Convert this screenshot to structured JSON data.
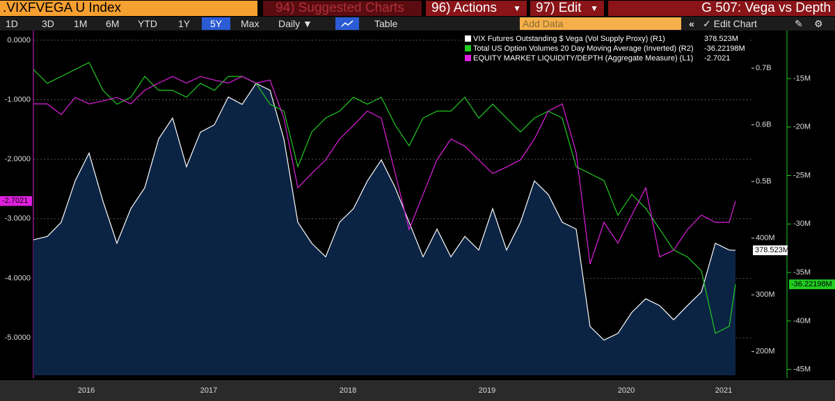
{
  "header": {
    "security": ".VIXFVEGA U Index",
    "suggested": "94) Suggested Charts",
    "actions": "96) Actions",
    "edit": "97) Edit",
    "chart_name": "G 507: Vega vs Depth"
  },
  "toolbar": {
    "ranges": [
      "1D",
      "3D",
      "1M",
      "6M",
      "YTD",
      "1Y",
      "5Y",
      "Max"
    ],
    "period": "Daily",
    "table": "Table",
    "add_data": "Add Data",
    "edit_chart": "Edit Chart"
  },
  "chart_data": {
    "type": "line",
    "x": [
      2016.24,
      2016.34,
      2016.44,
      2016.54,
      2016.64,
      2016.74,
      2016.84,
      2016.94,
      2017.04,
      2017.14,
      2017.24,
      2017.34,
      2017.44,
      2017.54,
      2017.64,
      2017.74,
      2017.84,
      2017.94,
      2018.04,
      2018.14,
      2018.24,
      2018.34,
      2018.44,
      2018.54,
      2018.64,
      2018.74,
      2018.84,
      2018.94,
      2019.04,
      2019.14,
      2019.24,
      2019.34,
      2019.44,
      2019.54,
      2019.64,
      2019.74,
      2019.84,
      2019.94,
      2020.04,
      2020.14,
      2020.24,
      2020.34,
      2020.44,
      2020.54,
      2020.64,
      2020.74,
      2020.84,
      2020.94,
      2021.04,
      2021.14,
      2021.24,
      2021.285
    ],
    "xlim": [
      2016.24,
      2021.4
    ],
    "xticks": [
      {
        "value": 2016.62,
        "label": "2016"
      },
      {
        "value": 2017.5,
        "label": "2017"
      },
      {
        "value": 2018.5,
        "label": "2018"
      },
      {
        "value": 2019.5,
        "label": "2019"
      },
      {
        "value": 2020.5,
        "label": "2020"
      },
      {
        "value": 2021.2,
        "label": "2021"
      }
    ],
    "ylim": [
      -5.63,
      0.15
    ],
    "yticks": [
      {
        "value": 0,
        "label": "0.0000"
      },
      {
        "value": -1,
        "label": "-1.0000"
      },
      {
        "value": -2,
        "label": "-2.0000"
      },
      {
        "value": -3,
        "label": "-3.0000"
      },
      {
        "value": -4,
        "label": "-4.0000"
      },
      {
        "value": -5,
        "label": "-5.0000"
      }
    ],
    "y2lim": [
      158,
      765
    ],
    "y2ticks": [
      {
        "value": 700,
        "label": "0.7B"
      },
      {
        "value": 600,
        "label": "0.6B"
      },
      {
        "value": 500,
        "label": "0.5B"
      },
      {
        "value": 400,
        "label": "400M"
      },
      {
        "value": 300,
        "label": "300M"
      },
      {
        "value": 200,
        "label": "200M"
      }
    ],
    "y3lim": [
      -45.6,
      -10.13
    ],
    "y3ticks": [
      {
        "value": -15,
        "label": "-15M"
      },
      {
        "value": -20,
        "label": "-20M"
      },
      {
        "value": -25,
        "label": "-25M"
      },
      {
        "value": -30,
        "label": "-30M"
      },
      {
        "value": -35,
        "label": "-35M"
      },
      {
        "value": -40,
        "label": "-40M"
      },
      {
        "value": -45,
        "label": "-45M"
      }
    ],
    "grid": true,
    "series": [
      {
        "name": "VIX Futures Outstanding $ Vega (Vol Supply Proxy) (R1)",
        "color": "#ffffff",
        "axis": "y2",
        "area_color": "#0c2444",
        "values": [
          397,
          403,
          428,
          501,
          550,
          465,
          391,
          452,
          489,
          575,
          612,
          526,
          587,
          600,
          649,
          636,
          673,
          661,
          575,
          428,
          391,
          367,
          428,
          452,
          501,
          538,
          489,
          428,
          367,
          416,
          367,
          403,
          379,
          452,
          379,
          428,
          501,
          477,
          428,
          416,
          244,
          220,
          232,
          269,
          293,
          281,
          256,
          281,
          305,
          391,
          379,
          378.523
        ],
        "value_labels": [
          null,
          null,
          null,
          null,
          null,
          null,
          null,
          null,
          null,
          null,
          null,
          null,
          null,
          null,
          null,
          null,
          null,
          null,
          null,
          null,
          null,
          null,
          null,
          null,
          null,
          null,
          null,
          null,
          null,
          null,
          null,
          null,
          null,
          null,
          null,
          null,
          null,
          null,
          null,
          null,
          null,
          null,
          null,
          null,
          null,
          null,
          null,
          null,
          null,
          null,
          null,
          "378.523M"
        ]
      },
      {
        "name": "Total US Option Volumes 20 Day Moving Average (Inverted) (R2)",
        "color": "#22cc22",
        "axis": "y3",
        "values": [
          -14.07,
          -15.5,
          -14.79,
          -14.07,
          -13.35,
          -16.22,
          -17.65,
          -16.93,
          -14.79,
          -16.22,
          -16.22,
          -16.93,
          -15.5,
          -16.22,
          -14.79,
          -14.79,
          -15.5,
          -17.65,
          -18.36,
          -24.09,
          -20.51,
          -19.08,
          -18.36,
          -16.93,
          -17.65,
          -16.93,
          -19.8,
          -21.94,
          -19.08,
          -18.36,
          -18.36,
          -16.93,
          -19.08,
          -17.65,
          -19.08,
          -20.51,
          -19.08,
          -18.36,
          -19.08,
          -24.09,
          -24.81,
          -25.52,
          -29.1,
          -26.95,
          -28.39,
          -30.53,
          -32.68,
          -33.4,
          -34.83,
          -41.27,
          -40.55,
          -36.22198
        ],
        "value_labels": [
          null,
          null,
          null,
          null,
          null,
          null,
          null,
          null,
          null,
          null,
          null,
          null,
          null,
          null,
          null,
          null,
          null,
          null,
          null,
          null,
          null,
          null,
          null,
          null,
          null,
          null,
          null,
          null,
          null,
          null,
          null,
          null,
          null,
          null,
          null,
          null,
          null,
          null,
          null,
          null,
          null,
          null,
          null,
          null,
          null,
          null,
          null,
          null,
          null,
          null,
          null,
          "-36.22198M"
        ]
      },
      {
        "name": "EQUITY MARKET LIQUIDITY/DEPTH (Aggregate Measure) (L1)",
        "color": "#e020e0",
        "axis": "y",
        "values": [
          -1.07,
          -1.07,
          -1.25,
          -0.96,
          -1.07,
          -1.02,
          -0.96,
          -1.07,
          -0.84,
          -0.72,
          -0.61,
          -0.72,
          -0.61,
          -0.67,
          -0.72,
          -0.61,
          -0.72,
          -0.67,
          -1.31,
          -2.48,
          -2.24,
          -2.01,
          -1.66,
          -1.43,
          -1.19,
          -1.31,
          -2.24,
          -3.18,
          -2.59,
          -2.01,
          -1.66,
          -1.78,
          -2.01,
          -2.24,
          -2.13,
          -2.01,
          -1.66,
          -1.19,
          -1.07,
          -1.89,
          -3.76,
          -3.06,
          -3.41,
          -2.94,
          -2.48,
          -3.64,
          -3.53,
          -3.18,
          -2.94,
          -3.06,
          -3.06,
          -2.7021
        ]
      }
    ]
  }
}
